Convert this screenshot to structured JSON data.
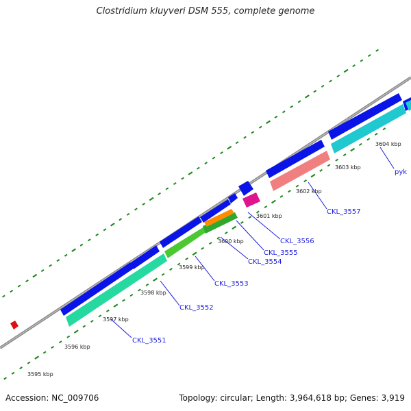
{
  "title": "Clostridium kluyveri DSM 555, complete genome",
  "footer": {
    "accession": "Accession: NC_009706",
    "summary": "Topology: circular; Length: 3,964,618 bp; Genes: 3,919"
  },
  "colors": {
    "backbone": "#8a8a8a",
    "tick": "#1e8a1e",
    "forward_cds": "#0a14e6",
    "leader": "#1a1adf"
  },
  "kbp_labels": [
    "3595 kbp",
    "3596 kbp",
    "3597 kbp",
    "3598 kbp",
    "3599 kbp",
    "3600 kbp",
    "3601 kbp",
    "3602 kbp",
    "3603 kbp",
    "3604 kbp"
  ],
  "gene_labels": [
    "CKL_3551",
    "CKL_3552",
    "CKL_3553",
    "CKL_3554",
    "CKL_3555",
    "CKL_3556",
    "CKL_3557",
    "pyk"
  ],
  "reverse_feature_colors": [
    "#26d9a0",
    "#26d9a0",
    "#4cc832",
    "#2fa82f",
    "#ff8c00",
    "#e0148c",
    "#f08080",
    "#20c8d0",
    "#20c8d0"
  ]
}
